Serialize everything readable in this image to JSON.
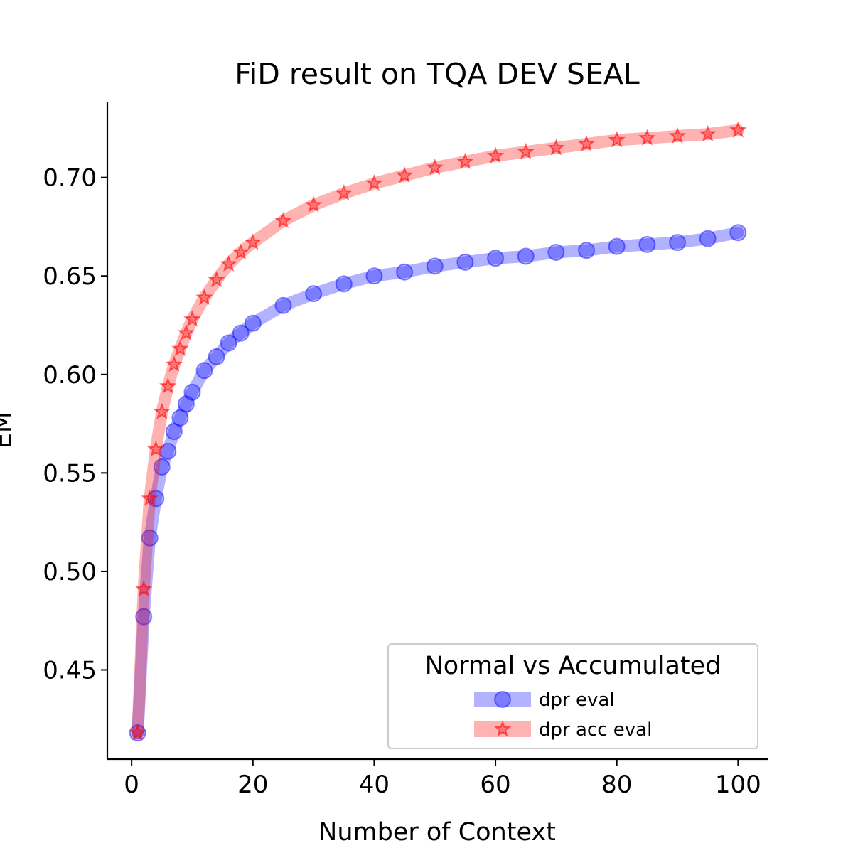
{
  "chart_data": {
    "type": "line",
    "title": "FiD result on TQA DEV SEAL",
    "xlabel": "Number of Context",
    "ylabel": "EM",
    "xlim": [
      -4,
      105
    ],
    "ylim": [
      0.4047,
      0.7385
    ],
    "xticks": [
      0,
      20,
      40,
      60,
      80,
      100
    ],
    "yticks": [
      0.45,
      0.5,
      0.55,
      0.6,
      0.65,
      0.7
    ],
    "xtick_labels": [
      "0",
      "20",
      "40",
      "60",
      "80",
      "100"
    ],
    "ytick_labels": [
      "0.45",
      "0.50",
      "0.55",
      "0.60",
      "0.65",
      "0.70"
    ],
    "grid": false,
    "legend": {
      "title": "Normal vs Accumulated",
      "placement": "lower right"
    },
    "x": [
      1,
      2,
      3,
      4,
      5,
      6,
      7,
      8,
      9,
      10,
      12,
      14,
      16,
      18,
      20,
      25,
      30,
      35,
      40,
      45,
      50,
      55,
      60,
      65,
      70,
      75,
      80,
      85,
      90,
      95,
      100
    ],
    "series": [
      {
        "name": "dpr eval",
        "marker": "circle",
        "color": "#0000ff",
        "values": [
          0.418,
          0.477,
          0.517,
          0.537,
          0.553,
          0.561,
          0.571,
          0.578,
          0.585,
          0.591,
          0.602,
          0.609,
          0.616,
          0.621,
          0.626,
          0.635,
          0.641,
          0.646,
          0.65,
          0.652,
          0.655,
          0.657,
          0.659,
          0.66,
          0.662,
          0.663,
          0.665,
          0.666,
          0.667,
          0.669,
          0.672
        ]
      },
      {
        "name": "dpr acc eval",
        "marker": "star",
        "color": "#ff0000",
        "values": [
          0.418,
          0.491,
          0.537,
          0.562,
          0.581,
          0.594,
          0.605,
          0.613,
          0.621,
          0.628,
          0.639,
          0.648,
          0.656,
          0.662,
          0.667,
          0.678,
          0.686,
          0.692,
          0.697,
          0.701,
          0.705,
          0.708,
          0.711,
          0.713,
          0.715,
          0.717,
          0.719,
          0.72,
          0.721,
          0.722,
          0.724
        ]
      }
    ]
  }
}
